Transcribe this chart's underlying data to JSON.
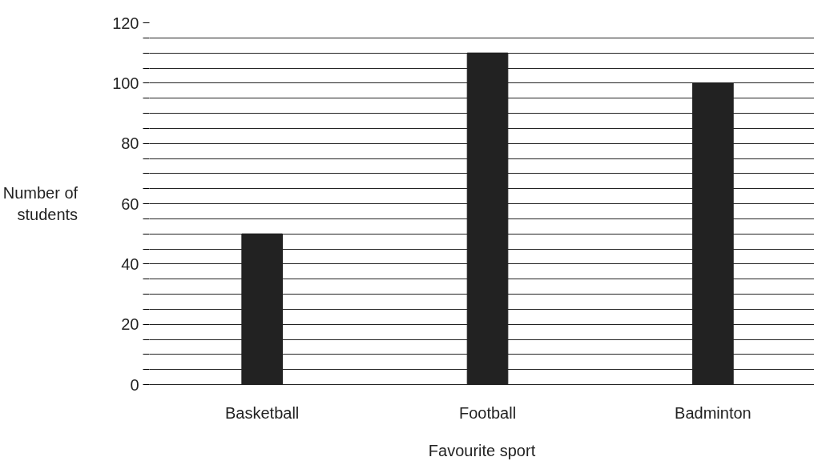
{
  "chart_data": {
    "type": "bar",
    "xlabel": "Favourite sport",
    "ylabel": "Number of\nstudents",
    "categories": [
      "Basketball",
      "Football",
      "Badminton"
    ],
    "values": [
      50,
      110,
      100
    ],
    "color": "#222222",
    "ylim": [
      0,
      120
    ],
    "yticks": [
      0,
      {
        "value": 5,
        "label": null
      },
      {
        "value": 10,
        "label": null
      },
      {
        "value": 15,
        "label": null
      },
      20,
      {
        "value": 25,
        "label": null
      },
      {
        "value": 30,
        "label": null
      },
      {
        "value": 35,
        "label": null
      },
      40,
      {
        "value": 45,
        "label": null
      },
      {
        "value": 50,
        "label": null
      },
      {
        "value": 55,
        "label": null
      },
      60,
      {
        "value": 65,
        "label": null
      },
      {
        "value": 70,
        "label": null
      },
      {
        "value": 75,
        "label": null
      },
      80,
      {
        "value": 85,
        "label": null
      },
      {
        "value": 90,
        "label": null
      },
      {
        "value": 95,
        "label": null
      },
      100,
      {
        "value": 105,
        "label": null
      },
      {
        "value": 110,
        "label": null
      },
      {
        "value": 115,
        "label": null
      },
      120
    ],
    "grid": "y"
  }
}
